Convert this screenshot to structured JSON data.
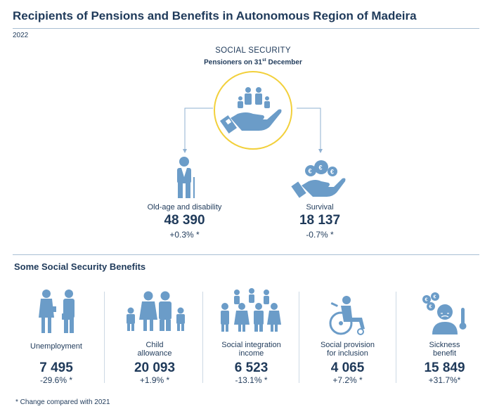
{
  "title": "Recipients of Pensions and Benefits in Autonomous Region of Madeira",
  "year": "2022",
  "social_security": {
    "title": "SOCIAL SECURITY",
    "subtitle_main": "Pensioners on 31",
    "subtitle_sup": "st",
    "subtitle_end": " December"
  },
  "pensions": [
    {
      "label": "Old-age and disability",
      "value": "48 390",
      "change": "+0.3% *",
      "icon": "elderly-man-icon"
    },
    {
      "label": "Survival",
      "value": "18 137",
      "change": "-0.7% *",
      "icon": "hand-coins-icon"
    }
  ],
  "benefits_title": "Some Social Security Benefits",
  "benefits": [
    {
      "label_line1": "Unemployment",
      "label_line2": "",
      "value": "7 495",
      "change": "-29.6% *",
      "icon": "workers-icon"
    },
    {
      "label_line1": "Child",
      "label_line2": "allowance",
      "value": "20 093",
      "change": "+1.9% *",
      "icon": "family-icon"
    },
    {
      "label_line1": "Social integration",
      "label_line2": "income",
      "value": "6 523",
      "change": "-13.1% *",
      "icon": "group-icon"
    },
    {
      "label_line1": "Social provision",
      "label_line2": "for inclusion",
      "value": "4 065",
      "change": "+7.2% *",
      "icon": "wheelchair-icon"
    },
    {
      "label_line1": "Sickness",
      "label_line2": "benefit",
      "value": "15 849",
      "change": "+31.7%*",
      "icon": "sick-person-icon"
    }
  ],
  "footnote": "* Change compared with 2021",
  "colors": {
    "accent_icon": "#6b9cc8",
    "ring": "#f2d03b",
    "text": "#1f3a5a",
    "rule": "#a9bfd3"
  }
}
